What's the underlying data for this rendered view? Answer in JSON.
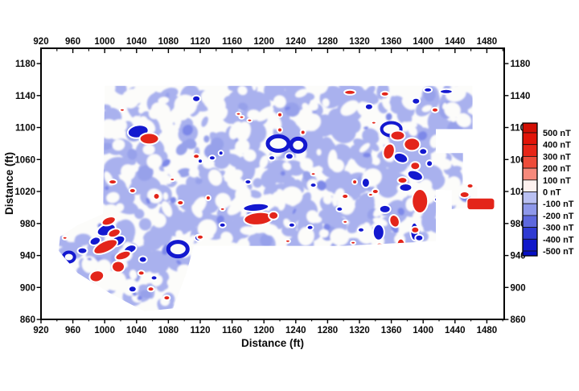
{
  "chart_data": {
    "type": "heatmap",
    "subtype": "filled-contour-magnetic-survey",
    "title": "",
    "xlabel": "Distance (ft)",
    "ylabel": "Distance (ft)",
    "unit": "nT",
    "x_ticks": [
      920,
      960,
      1000,
      1040,
      1080,
      1120,
      1160,
      1200,
      1240,
      1280,
      1320,
      1360,
      1400,
      1440,
      1480
    ],
    "y_ticks": [
      1180,
      1140,
      1100,
      1060,
      1020,
      980,
      940,
      900,
      860
    ],
    "x_range": [
      920,
      1502
    ],
    "y_range": [
      860,
      1199
    ],
    "minor_tick_step": 20,
    "grid": false,
    "legend": {
      "position": "right",
      "labels": [
        "500 nT",
        "400 nT",
        "300 nT",
        "200 nT",
        "100 nT",
        "0 nT",
        "-100 nT",
        "-200 nT",
        "-300 nT",
        "-400 nT",
        "-500 nT"
      ],
      "levels_nT": [
        500,
        400,
        300,
        200,
        100,
        0,
        -100,
        -200,
        -300,
        -400,
        -500
      ],
      "cell_colors": [
        "#d20f04",
        "#e11408",
        "#e72517",
        "#ee4c3a",
        "#f5897b",
        "#fdf1ef",
        "#b9c0f2",
        "#8e98ea",
        "#5d68de",
        "#2f3ad2",
        "#1119ca",
        "#060fc5"
      ]
    },
    "map_colors": {
      "background": "#ffffff",
      "low_negative_fill": "#a9b1ee",
      "low_negative_fill_dark": "#97a1ea",
      "mid_negative_fill": "#7d88e8",
      "white_patch": "#fcfcfa",
      "positive_anomaly": "#e3251a",
      "negative_anomaly": "#1318cf"
    },
    "survey_outline": [
      [
        1000,
        1152
      ],
      [
        1462,
        1152
      ],
      [
        1462,
        1098
      ],
      [
        1416,
        1098
      ],
      [
        1416,
        1068
      ],
      [
        1450,
        1068
      ],
      [
        1450,
        1030
      ],
      [
        1468,
        1026
      ],
      [
        1468,
        1000
      ],
      [
        1436,
        998
      ],
      [
        1436,
        1022
      ],
      [
        1416,
        1022
      ],
      [
        1416,
        958
      ],
      [
        1300,
        952
      ],
      [
        1112,
        952
      ],
      [
        1102,
        916
      ],
      [
        1086,
        874
      ],
      [
        1050,
        870
      ],
      [
        1008,
        892
      ],
      [
        966,
        918
      ],
      [
        942,
        946
      ],
      [
        944,
        964
      ],
      [
        966,
        978
      ],
      [
        998,
        992
      ]
    ],
    "anomalies": {
      "positive": [
        [
          1056,
          1086,
          12,
          7,
          0
        ],
        [
          995,
          1092,
          4,
          3,
          0
        ],
        [
          1022,
          1122,
          3,
          2,
          0
        ],
        [
          1115,
          1064,
          4,
          3,
          0
        ],
        [
          1168,
          1117,
          3,
          2,
          0
        ],
        [
          1182,
          1109,
          3,
          2,
          0
        ],
        [
          1220,
          1116,
          3,
          3,
          0
        ],
        [
          1220,
          1097,
          3,
          3,
          0
        ],
        [
          1249,
          1094,
          3,
          3,
          0
        ],
        [
          1308,
          1144,
          7,
          3,
          0
        ],
        [
          1352,
          1142,
          5,
          3,
          0
        ],
        [
          1338,
          1106,
          3,
          2,
          0
        ],
        [
          1172,
          1113,
          3,
          2,
          0
        ],
        [
          1193,
          986,
          18,
          8,
          -5
        ],
        [
          1212,
          990,
          6,
          5,
          0
        ],
        [
          1130,
          1012,
          3,
          3,
          0
        ],
        [
          1095,
          1006,
          4,
          3,
          0
        ],
        [
          1010,
          1032,
          5,
          3,
          0
        ],
        [
          1035,
          1021,
          4,
          3,
          0
        ],
        [
          1065,
          1014,
          4,
          4,
          0
        ],
        [
          1085,
          1035,
          3,
          2,
          0
        ],
        [
          1302,
          1014,
          4,
          3,
          0
        ],
        [
          1314,
          1032,
          3,
          3,
          0
        ],
        [
          1334,
          1016,
          3,
          2,
          0
        ],
        [
          1340,
          1020,
          4,
          3,
          0
        ],
        [
          1262,
          1042,
          3,
          2,
          0
        ],
        [
          1368,
          1090,
          9,
          6,
          0
        ],
        [
          1386,
          1079,
          10,
          8,
          0
        ],
        [
          1357,
          1070,
          7,
          10,
          15
        ],
        [
          1390,
          1052,
          6,
          5,
          0
        ],
        [
          1374,
          1034,
          6,
          4,
          0
        ],
        [
          1396,
          1008,
          10,
          15,
          0
        ],
        [
          1364,
          983,
          6,
          8,
          -20
        ],
        [
          1372,
          954,
          5,
          7,
          0
        ],
        [
          1452,
          1016,
          6,
          4,
          0
        ],
        [
          1302,
          982,
          3,
          2,
          0
        ],
        [
          1230,
          958,
          3,
          2,
          0
        ],
        [
          1312,
          956,
          3,
          2,
          0
        ],
        [
          1345,
          953,
          4,
          3,
          0
        ],
        [
          1390,
          972,
          5,
          4,
          0
        ],
        [
          1415,
          1122,
          4,
          3,
          0
        ],
        [
          988,
          996,
          6,
          4,
          -20
        ],
        [
          1005,
          983,
          9,
          5,
          -20
        ],
        [
          1012,
          968,
          8,
          5,
          -20
        ],
        [
          1001,
          951,
          16,
          7,
          -25
        ],
        [
          1023,
          940,
          10,
          5,
          -20
        ],
        [
          1017,
          926,
          8,
          7,
          0
        ],
        [
          990,
          914,
          9,
          7,
          -15
        ],
        [
          1046,
          918,
          4,
          3,
          0
        ],
        [
          950,
          962,
          3,
          2,
          0
        ],
        [
          1078,
          887,
          4,
          3,
          0
        ],
        [
          1058,
          898,
          4,
          3,
          0
        ],
        [
          1120,
          963,
          4,
          3,
          0
        ],
        [
          1148,
          998,
          3,
          2,
          0
        ]
      ],
      "negative": [
        [
          1115,
          1136,
          5,
          4,
          0,
          0
        ],
        [
          1042,
          1095,
          13,
          8,
          -10,
          0
        ],
        [
          1218,
          1080,
          13,
          9,
          0,
          5
        ],
        [
          1243,
          1078,
          9,
          8,
          0,
          5
        ],
        [
          1190,
          1000,
          16,
          5,
          -5,
          0
        ],
        [
          1092,
          948,
          12,
          9,
          0,
          5
        ],
        [
          1135,
          1062,
          4,
          3,
          0,
          0
        ],
        [
          1146,
          1068,
          3,
          3,
          0,
          0
        ],
        [
          1120,
          1058,
          3,
          3,
          0,
          0
        ],
        [
          1180,
          1032,
          4,
          3,
          0,
          0
        ],
        [
          1210,
          1062,
          4,
          3,
          0,
          0
        ],
        [
          1232,
          1064,
          5,
          4,
          0,
          0
        ],
        [
          1262,
          1028,
          4,
          3,
          0,
          0
        ],
        [
          1148,
          978,
          4,
          3,
          0,
          0
        ],
        [
          1235,
          978,
          4,
          3,
          0,
          0
        ],
        [
          1258,
          975,
          4,
          3,
          0,
          0
        ],
        [
          1295,
          998,
          4,
          3,
          0,
          0
        ],
        [
          1332,
          1126,
          5,
          4,
          0,
          0
        ],
        [
          1391,
          1133,
          5,
          4,
          0,
          0
        ],
        [
          1429,
          1145,
          8,
          3,
          0,
          0
        ],
        [
          1406,
          1147,
          5,
          3,
          0,
          0
        ],
        [
          1360,
          1098,
          12,
          8,
          0,
          4
        ],
        [
          1372,
          1062,
          9,
          6,
          20,
          0
        ],
        [
          1390,
          1040,
          10,
          6,
          20,
          0
        ],
        [
          1378,
          1025,
          8,
          5,
          0,
          0
        ],
        [
          1400,
          1070,
          5,
          4,
          0,
          0
        ],
        [
          1408,
          1055,
          4,
          4,
          0,
          0
        ],
        [
          1389,
          970,
          5,
          11,
          0,
          0
        ],
        [
          1344,
          969,
          7,
          10,
          0,
          0
        ],
        [
          1328,
          1031,
          5,
          6,
          0,
          0
        ],
        [
          1352,
          998,
          7,
          5,
          0,
          0
        ],
        [
          1322,
          972,
          4,
          3,
          0,
          0
        ],
        [
          1395,
          962,
          5,
          4,
          0,
          0
        ],
        [
          1418,
          1010,
          4,
          3,
          0,
          0
        ],
        [
          1440,
          1092,
          7,
          5,
          0,
          0
        ],
        [
          1428,
          1084,
          4,
          3,
          0,
          0
        ],
        [
          1002,
          972,
          12,
          7,
          -20,
          0
        ],
        [
          1016,
          958,
          10,
          6,
          -25,
          0
        ],
        [
          988,
          958,
          7,
          5,
          -20,
          0
        ],
        [
          972,
          946,
          6,
          4,
          0,
          0
        ],
        [
          955,
          938,
          7,
          6,
          0,
          4
        ],
        [
          1032,
          948,
          8,
          5,
          -20,
          0
        ],
        [
          1048,
          935,
          5,
          4,
          0,
          0
        ],
        [
          1035,
          898,
          5,
          4,
          0,
          0
        ],
        [
          1062,
          912,
          4,
          3,
          0,
          0
        ],
        [
          1118,
          962,
          5,
          4,
          0,
          0
        ],
        [
          1145,
          940,
          4,
          3,
          0,
          0
        ]
      ]
    },
    "detached_features": [
      {
        "kind": "positive-bar",
        "x": 1455,
        "y_top": 1012,
        "w": 35,
        "h": 15
      },
      {
        "kind": "positive-dot",
        "x": 1459,
        "y": 1027,
        "rx": 3,
        "ry": 2
      }
    ],
    "texture": {
      "seed": 11,
      "low_blobs": 380,
      "dark_low_blobs": 40,
      "white_blobs": 165,
      "mid_blobs": 26
    }
  }
}
